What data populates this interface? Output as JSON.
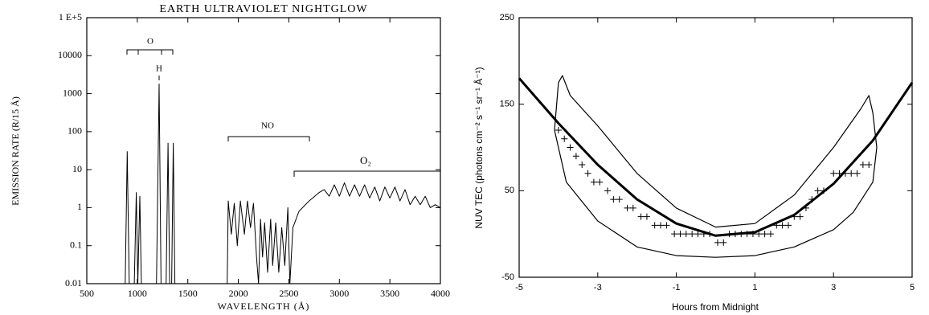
{
  "chart_data": [
    {
      "type": "line",
      "title": "EARTH ULTRAVIOLET NIGHTGLOW",
      "x_label": "WAVELENGTH (Å)",
      "y_label": "EMISSION RATE (R/15 Å)",
      "y_log": true,
      "xlim": [
        500,
        4000
      ],
      "ylim": [
        0.01,
        100000
      ],
      "xticks": [
        500,
        1000,
        1500,
        2000,
        2500,
        3000,
        3500,
        4000
      ],
      "yticks": [
        0.01,
        0.1,
        1,
        10,
        100,
        1000,
        10000,
        {
          "value": 100000,
          "label": "1 E+5"
        }
      ],
      "annotations": [
        "O",
        "H",
        "NO",
        "O₂"
      ],
      "series": [
        {
          "color": "#000",
          "x": [
            880,
            900,
            920,
            970,
            990,
            1005,
            1025,
            1040,
            1190,
            1216,
            1235,
            1285,
            1304,
            1320,
            1340,
            1356,
            1372,
            1890,
            1900,
            1930,
            1960,
            1990,
            2020,
            2060,
            2090,
            2120,
            2150,
            2180,
            2200,
            2220,
            2240,
            2260,
            2290,
            2320,
            2340,
            2370,
            2400,
            2430,
            2460,
            2490,
            2510,
            2540,
            2600,
            2700,
            2800,
            2850,
            2900,
            2950,
            3000,
            3050,
            3100,
            3150,
            3200,
            3250,
            3300,
            3350,
            3400,
            3450,
            3500,
            3550,
            3600,
            3650,
            3700,
            3750,
            3800,
            3850,
            3900,
            3950,
            4000
          ],
          "values": [
            0.01,
            30,
            0.01,
            0.01,
            2.5,
            0.01,
            2,
            0.01,
            0.01,
            1800,
            0.01,
            0.01,
            50,
            0.01,
            0.01,
            50,
            0.01,
            0.01,
            1.5,
            0.2,
            1.3,
            0.1,
            1.5,
            0.2,
            1.5,
            0.3,
            1.3,
            0.05,
            0.01,
            0.5,
            0.05,
            0.4,
            0.02,
            0.5,
            0.03,
            0.4,
            0.02,
            0.3,
            0.03,
            1,
            0.01,
            0.3,
            0.8,
            1.5,
            2.5,
            3,
            2,
            4,
            2,
            4.5,
            2,
            4,
            2,
            4,
            1.8,
            3.5,
            1.5,
            3.5,
            1.8,
            3.5,
            1.5,
            3,
            1.2,
            2,
            1.2,
            2,
            1,
            1.2,
            1
          ]
        }
      ]
    },
    {
      "type": "line",
      "x_label": "Hours from Midnight",
      "y_label": "NUV TEC (photons cm⁻² s⁻¹ sr⁻¹ Å⁻¹)",
      "xlim": [
        -5,
        5
      ],
      "ylim": [
        -50,
        250
      ],
      "xticks": [
        -5,
        -3,
        -1,
        1,
        3,
        5
      ],
      "yticks": [
        -50,
        50,
        150,
        250
      ],
      "series": [
        {
          "color": "#000",
          "width": 3,
          "x": [
            -5,
            -4,
            -3,
            -2,
            -1,
            0,
            1,
            2,
            3,
            4,
            5
          ],
          "values": [
            180,
            128,
            80,
            40,
            12,
            -2,
            2,
            22,
            58,
            108,
            175
          ]
        },
        {
          "color": "#000",
          "width": 1.2,
          "x": [
            -4.1,
            -4.0,
            -3.9,
            -3.7,
            -3,
            -2,
            -1,
            0,
            1,
            2,
            3,
            3.7,
            3.9,
            4.0,
            4.1,
            4.0,
            3.5,
            3,
            2,
            1,
            0,
            -1,
            -2,
            -3,
            -3.8,
            -4.1
          ],
          "values": [
            120,
            175,
            183,
            160,
            125,
            70,
            30,
            8,
            12,
            45,
            100,
            145,
            160,
            140,
            100,
            60,
            25,
            5,
            -15,
            -25,
            -27,
            -25,
            -15,
            15,
            60,
            120
          ]
        },
        {
          "color": "#000",
          "marker": "plus",
          "x": [
            -4,
            -3.85,
            -3.7,
            -3.55,
            -3.4,
            -3.25,
            -3.1,
            -2.95,
            -2.75,
            -2.6,
            -2.45,
            -2.25,
            -2.1,
            -1.9,
            -1.75,
            -1.55,
            -1.4,
            -1.25,
            -1.05,
            -0.9,
            -0.75,
            -0.6,
            -0.45,
            -0.3,
            -0.15,
            0.05,
            0.2,
            0.35,
            0.5,
            0.65,
            0.8,
            0.95,
            1.1,
            1.25,
            1.4,
            1.55,
            1.7,
            1.85,
            2.0,
            2.15,
            2.3,
            2.45,
            2.6,
            2.75,
            3.0,
            3.15,
            3.3,
            3.45,
            3.6,
            3.75,
            3.9
          ],
          "values": [
            120,
            110,
            100,
            90,
            80,
            70,
            60,
            60,
            50,
            40,
            40,
            30,
            30,
            20,
            20,
            10,
            10,
            10,
            0,
            0,
            0,
            0,
            0,
            0,
            0,
            -10,
            -10,
            0,
            0,
            0,
            0,
            0,
            0,
            0,
            0,
            10,
            10,
            10,
            20,
            20,
            30,
            40,
            50,
            50,
            70,
            70,
            70,
            70,
            70,
            80,
            80
          ]
        }
      ]
    }
  ]
}
